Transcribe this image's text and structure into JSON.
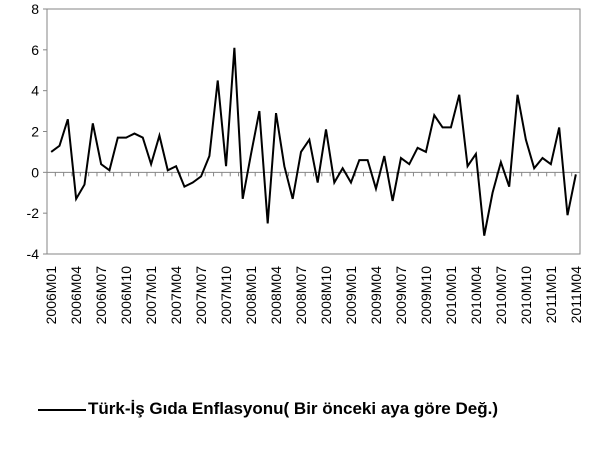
{
  "chart_data": {
    "type": "line",
    "categories": [
      "2006M01",
      null,
      null,
      "2006M04",
      null,
      null,
      "2006M07",
      null,
      null,
      "2006M10",
      null,
      null,
      "2007M01",
      null,
      null,
      "2007M04",
      null,
      null,
      "2007M07",
      null,
      null,
      "2007M10",
      null,
      null,
      "2008M01",
      null,
      null,
      "2008M04",
      null,
      null,
      "2008M07",
      null,
      null,
      "2008M10",
      null,
      null,
      "2009M01",
      null,
      null,
      "2009M04",
      null,
      null,
      "2009M07",
      null,
      null,
      "2009M10",
      null,
      null,
      "2010M01",
      null,
      null,
      "2010M04",
      null,
      null,
      "2010M07",
      null,
      null,
      "2010M10",
      null,
      null,
      "2011M01",
      null,
      null,
      "2011M04"
    ],
    "series": [
      {
        "name": "Türk-İş Gıda Enflasyonu( Bir önceki aya göre Değ.)",
        "color": "#000000",
        "values": [
          1.0,
          1.3,
          2.6,
          -1.3,
          -0.6,
          2.4,
          0.4,
          0.1,
          1.7,
          1.7,
          1.9,
          1.7,
          0.4,
          1.8,
          0.1,
          0.3,
          -0.7,
          -0.5,
          -0.2,
          0.8,
          4.5,
          0.3,
          6.1,
          -1.3,
          0.9,
          3.0,
          -2.5,
          2.9,
          0.3,
          -1.3,
          1.0,
          1.6,
          -0.5,
          2.1,
          -0.5,
          0.2,
          -0.5,
          0.6,
          0.6,
          -0.8,
          0.8,
          -1.4,
          0.7,
          0.4,
          1.2,
          1.0,
          2.8,
          2.2,
          2.2,
          3.8,
          0.3,
          0.9,
          -3.1,
          -1.0,
          0.5,
          -0.7,
          3.8,
          1.6,
          0.2,
          0.7,
          0.4,
          2.2,
          -2.1,
          -0.1
        ]
      }
    ],
    "ylim": [
      -4,
      8
    ],
    "yticks": [
      -4,
      -2,
      0,
      2,
      4,
      6,
      8
    ],
    "grid": false,
    "legend": "bottom"
  }
}
